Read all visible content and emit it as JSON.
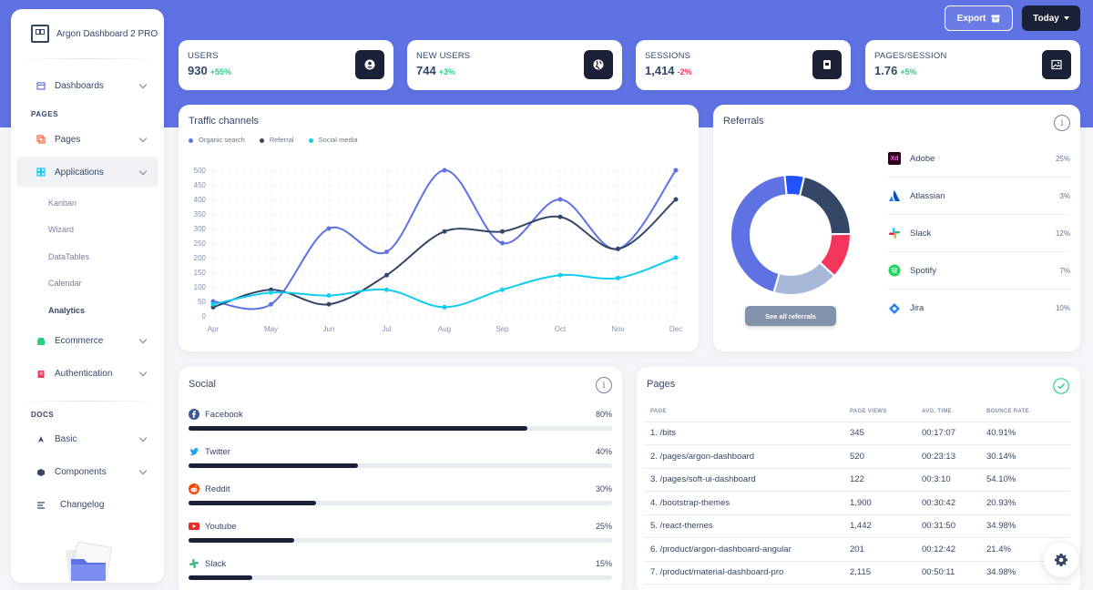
{
  "sidebar": {
    "brand": "Argon Dashboard 2 PRO",
    "dashboards": "Dashboards",
    "pages_section": "PAGES",
    "pages": "Pages",
    "applications": "Applications",
    "sub_items": [
      "Kanban",
      "Wizard",
      "DataTables",
      "Calendar",
      "Analytics"
    ],
    "ecommerce": "Ecommerce",
    "authentication": "Authentication",
    "docs_section": "DOCS",
    "basic": "Basic",
    "components": "Components",
    "changelog": "Changelog"
  },
  "header": {
    "export_label": "Export",
    "today_label": "Today"
  },
  "stats": [
    {
      "label": "Users",
      "value": "930",
      "change": "+55%",
      "trend": "pos"
    },
    {
      "label": "New Users",
      "value": "744",
      "change": "+3%",
      "trend": "pos"
    },
    {
      "label": "Sessions",
      "value": "1,414",
      "change": "-2%",
      "trend": "neg"
    },
    {
      "label": "Pages/Session",
      "value": "1.76",
      "change": "+5%",
      "trend": "pos"
    }
  ],
  "traffic": {
    "title": "Traffic channels",
    "colors": [
      "#5e72e4",
      "#344767",
      "#11cdef"
    ]
  },
  "chart_data": {
    "type": "line",
    "title": "Traffic channels",
    "categories": [
      "Apr",
      "May",
      "Jun",
      "Jul",
      "Aug",
      "Sep",
      "Oct",
      "Nov",
      "Dec"
    ],
    "series": [
      {
        "name": "Organic search",
        "values": [
          50,
          40,
          300,
          220,
          500,
          250,
          400,
          230,
          500
        ]
      },
      {
        "name": "Referral",
        "values": [
          30,
          90,
          40,
          140,
          290,
          290,
          340,
          230,
          400
        ]
      },
      {
        "name": "Social media",
        "values": [
          40,
          80,
          70,
          90,
          30,
          90,
          140,
          130,
          200
        ]
      }
    ],
    "ylim": [
      0,
      500
    ],
    "yticks": [
      "0",
      "50",
      "100",
      "150",
      "200",
      "250",
      "300",
      "350",
      "400",
      "450",
      "500"
    ],
    "grid": true,
    "legend": "top-left"
  },
  "referrals": {
    "title": "Referrals",
    "button": "See all referrals",
    "items": [
      {
        "name": "Adobe",
        "pct": "25%",
        "value": 25,
        "color": "#5e72e4"
      },
      {
        "name": "Atlassian",
        "pct": "3%",
        "value": 3,
        "color": "#2152ff"
      },
      {
        "name": "Slack",
        "pct": "12%",
        "value": 12,
        "color": "#344767"
      },
      {
        "name": "Spotify",
        "pct": "7%",
        "value": 7,
        "color": "#f5365c"
      },
      {
        "name": "Jira",
        "pct": "10%",
        "value": 10,
        "color": "#a8b8d8"
      }
    ],
    "adobe_mark": "Xd"
  },
  "social": {
    "title": "Social",
    "items": [
      {
        "name": "Facebook",
        "pct": "80%",
        "value": 80,
        "icon": "facebook-icon",
        "color": "#3b5998"
      },
      {
        "name": "Twitter",
        "pct": "40%",
        "value": 40,
        "icon": "twitter-icon",
        "color": "#1da1f2"
      },
      {
        "name": "Reddit",
        "pct": "30%",
        "value": 30,
        "icon": "reddit-icon",
        "color": "#ff4500"
      },
      {
        "name": "Youtube",
        "pct": "25%",
        "value": 25,
        "icon": "youtube-icon",
        "color": "#e52d27"
      },
      {
        "name": "Slack",
        "pct": "15%",
        "value": 15,
        "icon": "slack-icon",
        "color": "#2eb67d"
      }
    ]
  },
  "pages": {
    "title": "Pages",
    "columns": [
      "Page",
      "Page Views",
      "Avg. Time",
      "Bounce Rate"
    ],
    "rows": [
      [
        "1. /bits",
        "345",
        "00:17:07",
        "40.91%"
      ],
      [
        "2. /pages/argon-dashboard",
        "520",
        "00:23:13",
        "30.14%"
      ],
      [
        "3. /pages/soft-ui-dashboard",
        "122",
        "00:3:10",
        "54.10%"
      ],
      [
        "4. /bootstrap-themes",
        "1,900",
        "00:30:42",
        "20.93%"
      ],
      [
        "5. /react-themes",
        "1,442",
        "00:31:50",
        "34.98%"
      ],
      [
        "6. /product/argon-dashboard-angular",
        "201",
        "00:12:42",
        "21.4%"
      ],
      [
        "7. /product/material-dashboard-pro",
        "2,115",
        "00:50:11",
        "34.98%"
      ]
    ]
  }
}
